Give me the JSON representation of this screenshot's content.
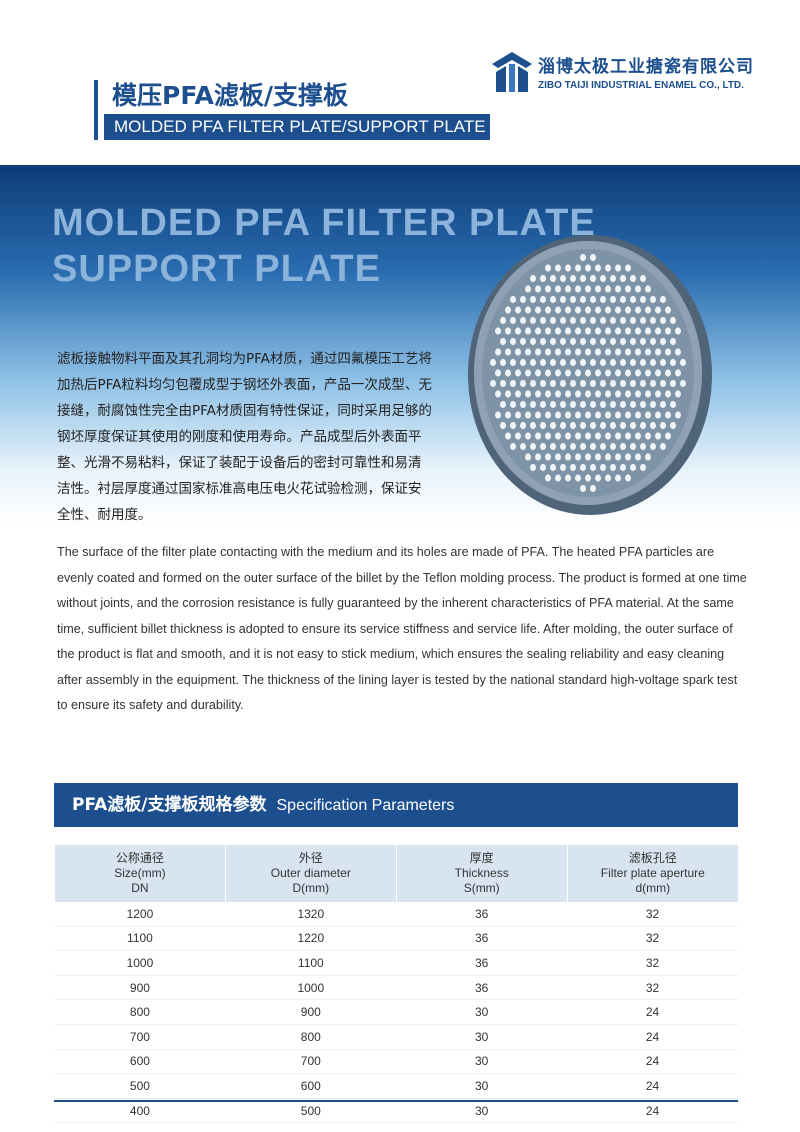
{
  "header": {
    "title_cn": "模压PFA滤板/支撑板",
    "title_en": "MOLDED PFA FILTER PLATE/SUPPORT PLATE",
    "company_cn": "淄博太极工业搪瓷有限公司",
    "company_en": "ZIBO TAIJI INDUSTRIAL ENAMEL CO., LTD."
  },
  "banner": {
    "heading": [
      "MOLDED PFA FILTER PLATE",
      "SUPPORT PLATE"
    ],
    "description_cn": [
      "滤板接触物料平面及其孔洞均为PFA材质，通过四氟模压工艺将",
      "加热后PFA粒料均匀包覆成型于钢坯外表面，产品一次成型、无",
      "接缝，耐腐蚀性完全由PFA材质固有特性保证，同时采用足够的",
      "钢坯厚度保证其使用的刚度和使用寿命。产品成型后外表面平",
      "整、光滑不易粘料，保证了装配于设备后的密封可靠性和易清",
      "洁性。衬层厚度通过国家标准高电压电火花试验检测，保证安",
      "全性、耐用度。"
    ]
  },
  "description_en": "The surface of the filter plate contacting with the medium and its holes are made of PFA. The heated PFA particles are evenly coated and formed on the outer surface of the billet by the Teflon molding process. The product is formed at one time without joints, and the corrosion resistance is fully guaranteed by the inherent characteristics of PFA material. At the same time, sufficient billet thickness is adopted to ensure its service stiffness and service life. After molding, the outer surface of the product is flat and smooth, and it is not easy to stick medium, which ensures the sealing reliability and easy cleaning after assembly in the equipment. The thickness of the lining layer is tested by the national standard high-voltage spark test to ensure its safety and durability.",
  "table": {
    "title_cn": "PFA滤板/支撑板规格参数",
    "title_en": "Specification Parameters",
    "headers": [
      [
        "公称通径",
        "Size(mm)",
        "DN"
      ],
      [
        "外径",
        "Outer diameter",
        "D(mm)"
      ],
      [
        "厚度",
        "Thickness",
        "S(mm)"
      ],
      [
        "滤板孔径",
        "Filter plate aperture",
        "d(mm)"
      ]
    ],
    "rows": [
      [
        1200,
        1320,
        36,
        32
      ],
      [
        1100,
        1220,
        36,
        32
      ],
      [
        1000,
        1100,
        36,
        32
      ],
      [
        900,
        1000,
        36,
        32
      ],
      [
        800,
        900,
        30,
        24
      ],
      [
        700,
        800,
        30,
        24
      ],
      [
        600,
        700,
        30,
        24
      ],
      [
        500,
        600,
        30,
        24
      ],
      [
        400,
        500,
        30,
        24
      ]
    ]
  }
}
